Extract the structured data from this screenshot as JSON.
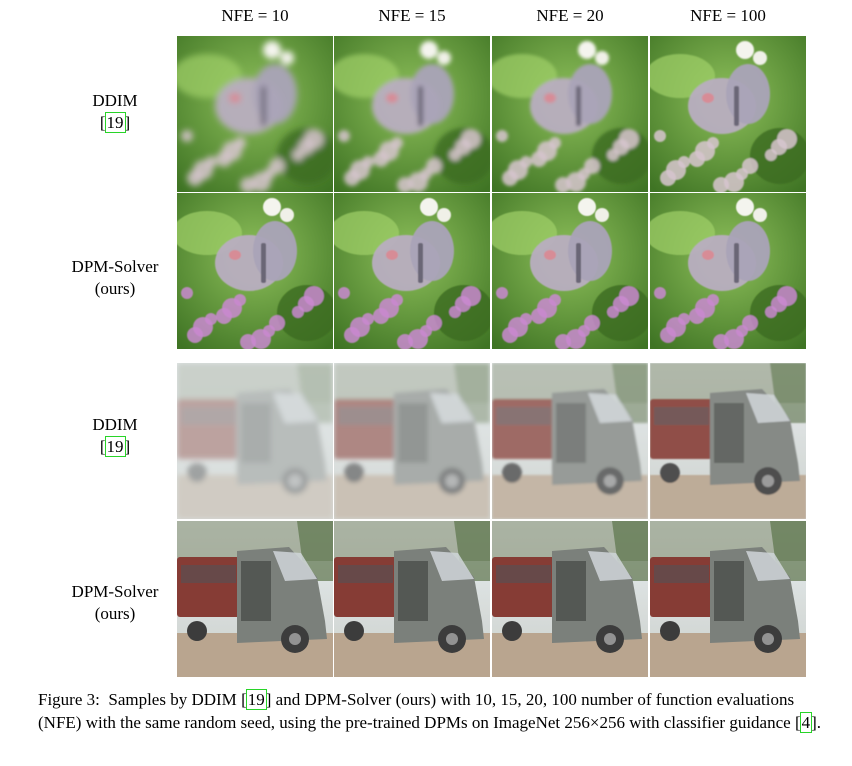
{
  "columns": [
    "NFE = 10",
    "NFE = 15",
    "NFE = 20",
    "NFE = 100"
  ],
  "rows": [
    {
      "method": "DDIM",
      "cite": "19",
      "group": "butterfly",
      "variant": "ddim"
    },
    {
      "method": "DPM-Solver",
      "sub": "(ours)",
      "group": "butterfly",
      "variant": "dpm"
    },
    {
      "method": "DDIM",
      "cite": "19",
      "group": "truck",
      "variant": "ddim"
    },
    {
      "method": "DPM-Solver",
      "sub": "(ours)",
      "group": "truck",
      "variant": "dpm"
    }
  ],
  "caption": {
    "label": "Figure 3:",
    "part1": "Samples by DDIM",
    "cite1": "19",
    "part2": "and DPM-Solver (ours) with 10, 15, 20, 100 number of function evaluations (NFE) with the same random seed, using the pre-trained DPMs on ImageNet 256×256 with classifier guidance",
    "cite2": "4",
    "end": "."
  },
  "colors": {
    "citation_box": "#28d428",
    "foliage": "#5e9a36",
    "truck_body": "#6f7470"
  }
}
